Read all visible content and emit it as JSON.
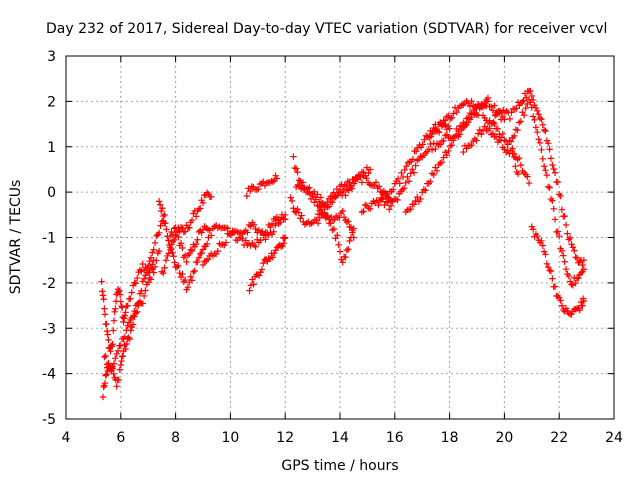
{
  "chart_data": {
    "type": "scatter",
    "title": "Day 232 of 2017, Sidereal Day-to-day VTEC variation (SDTVAR) for receiver vcvl",
    "xlabel": "GPS time / hours",
    "ylabel": "SDTVAR / TECUs",
    "xlim": [
      4,
      24
    ],
    "ylim": [
      -5,
      3
    ],
    "xticks": [
      4,
      6,
      8,
      10,
      12,
      14,
      16,
      18,
      20,
      22,
      24
    ],
    "yticks": [
      -5,
      -4,
      -3,
      -2,
      -1,
      0,
      1,
      2,
      3
    ],
    "grid": true,
    "marker": "+",
    "color": "#ff0000",
    "series": [
      {
        "name": "satellite tracks",
        "tracks": [
          [
            [
              5.3,
              -2.0
            ],
            [
              5.4,
              -2.6
            ],
            [
              5.5,
              -3.1
            ],
            [
              5.6,
              -3.5
            ],
            [
              5.7,
              -3.3
            ],
            [
              5.8,
              -2.5
            ],
            [
              5.9,
              -2.1
            ],
            [
              6.0,
              -2.4
            ],
            [
              6.1,
              -2.8
            ],
            [
              6.2,
              -2.6
            ],
            [
              6.4,
              -2.2
            ],
            [
              6.6,
              -1.9
            ],
            [
              6.8,
              -1.6
            ],
            [
              7.0,
              -1.8
            ],
            [
              7.2,
              -1.5
            ]
          ],
          [
            [
              5.35,
              -4.5
            ],
            [
              5.45,
              -4.0
            ],
            [
              5.55,
              -3.8
            ],
            [
              5.7,
              -3.9
            ],
            [
              5.85,
              -4.3
            ],
            [
              6.0,
              -3.8
            ],
            [
              6.1,
              -3.5
            ],
            [
              6.25,
              -3.3
            ],
            [
              6.4,
              -3.0
            ],
            [
              6.6,
              -2.6
            ],
            [
              6.8,
              -2.4
            ],
            [
              7.0,
              -2.0
            ],
            [
              7.2,
              -1.7
            ],
            [
              7.4,
              -1.3
            ]
          ],
          [
            [
              5.4,
              -3.6
            ],
            [
              5.6,
              -3.9
            ],
            [
              5.8,
              -3.7
            ],
            [
              6.0,
              -3.4
            ],
            [
              6.2,
              -3.0
            ],
            [
              6.4,
              -2.8
            ],
            [
              6.6,
              -2.5
            ],
            [
              6.8,
              -2.0
            ],
            [
              7.0,
              -1.6
            ],
            [
              7.2,
              -1.2
            ],
            [
              7.4,
              -0.9
            ],
            [
              7.6,
              -0.5
            ]
          ],
          [
            [
              7.4,
              -0.2
            ],
            [
              7.55,
              -0.5
            ],
            [
              7.7,
              -0.9
            ],
            [
              7.85,
              -1.3
            ],
            [
              8.0,
              -1.6
            ],
            [
              8.2,
              -1.8
            ],
            [
              8.4,
              -2.1
            ],
            [
              8.6,
              -1.9
            ],
            [
              8.8,
              -1.5
            ],
            [
              9.0,
              -1.3
            ],
            [
              9.2,
              -1.0
            ]
          ],
          [
            [
              7.5,
              -1.8
            ],
            [
              7.7,
              -1.4
            ],
            [
              7.9,
              -1.1
            ],
            [
              8.1,
              -0.8
            ],
            [
              8.3,
              -0.9
            ],
            [
              8.5,
              -0.7
            ],
            [
              8.7,
              -0.5
            ],
            [
              8.9,
              -0.3
            ],
            [
              9.1,
              -0.1
            ],
            [
              9.3,
              -0.1
            ]
          ],
          [
            [
              7.8,
              -1.0
            ],
            [
              8.0,
              -0.8
            ],
            [
              8.2,
              -1.2
            ],
            [
              8.4,
              -1.5
            ],
            [
              8.6,
              -1.3
            ],
            [
              8.8,
              -1.0
            ],
            [
              9.0,
              -0.8
            ],
            [
              9.3,
              -0.9
            ],
            [
              9.6,
              -0.7
            ],
            [
              9.9,
              -0.8
            ],
            [
              10.2,
              -1.0
            ],
            [
              10.5,
              -0.9
            ],
            [
              10.8,
              -0.7
            ],
            [
              11.1,
              -0.9
            ],
            [
              11.4,
              -1.0
            ],
            [
              11.7,
              -0.7
            ],
            [
              12.0,
              -0.6
            ]
          ],
          [
            [
              9.0,
              -1.6
            ],
            [
              9.3,
              -1.4
            ],
            [
              9.6,
              -1.2
            ],
            [
              9.9,
              -1.0
            ],
            [
              10.2,
              -0.9
            ],
            [
              10.5,
              -1.1
            ],
            [
              10.8,
              -1.2
            ],
            [
              11.1,
              -1.0
            ],
            [
              11.4,
              -0.8
            ],
            [
              11.7,
              -0.6
            ],
            [
              12.0,
              -0.5
            ]
          ],
          [
            [
              10.6,
              0.0
            ],
            [
              10.9,
              0.1
            ],
            [
              11.2,
              0.2
            ],
            [
              11.5,
              0.3
            ],
            [
              11.7,
              0.3
            ]
          ],
          [
            [
              10.7,
              -2.1
            ],
            [
              10.9,
              -1.9
            ],
            [
              11.1,
              -1.7
            ],
            [
              11.3,
              -1.5
            ],
            [
              11.5,
              -1.4
            ],
            [
              11.7,
              -1.2
            ],
            [
              11.9,
              -1.1
            ],
            [
              12.0,
              -1.0
            ]
          ],
          [
            [
              12.2,
              -0.2
            ],
            [
              12.4,
              -0.4
            ],
            [
              12.6,
              -0.6
            ],
            [
              12.9,
              -0.7
            ],
            [
              13.2,
              -0.6
            ],
            [
              13.5,
              -0.5
            ],
            [
              13.8,
              -0.6
            ],
            [
              14.1,
              -0.5
            ],
            [
              14.3,
              -0.7
            ],
            [
              14.5,
              -1.0
            ]
          ],
          [
            [
              12.3,
              0.7
            ],
            [
              12.5,
              0.3
            ],
            [
              12.7,
              0.1
            ],
            [
              13.0,
              0.0
            ],
            [
              13.3,
              -0.2
            ],
            [
              13.6,
              -0.3
            ],
            [
              13.9,
              -0.1
            ],
            [
              14.2,
              0.0
            ],
            [
              14.5,
              0.2
            ],
            [
              14.8,
              0.4
            ],
            [
              15.1,
              0.5
            ]
          ],
          [
            [
              12.4,
              0.2
            ],
            [
              12.7,
              0.1
            ],
            [
              13.0,
              -0.1
            ],
            [
              13.3,
              -0.3
            ],
            [
              13.6,
              -0.7
            ],
            [
              13.9,
              -1.0
            ],
            [
              14.1,
              -1.6
            ],
            [
              14.3,
              -1.2
            ],
            [
              14.5,
              -0.8
            ]
          ],
          [
            [
              13.2,
              -0.4
            ],
            [
              13.6,
              -0.2
            ],
            [
              14.0,
              0.1
            ],
            [
              14.4,
              0.2
            ],
            [
              14.8,
              0.3
            ],
            [
              15.2,
              0.2
            ],
            [
              15.6,
              0.0
            ],
            [
              15.9,
              -0.2
            ]
          ],
          [
            [
              14.8,
              -0.4
            ],
            [
              15.1,
              -0.3
            ],
            [
              15.4,
              -0.2
            ],
            [
              15.7,
              -0.1
            ],
            [
              16.0,
              0.1
            ],
            [
              16.3,
              0.4
            ],
            [
              16.6,
              0.7
            ],
            [
              16.9,
              1.0
            ],
            [
              17.2,
              1.2
            ],
            [
              17.5,
              1.3
            ],
            [
              17.8,
              1.5
            ],
            [
              18.0,
              1.4
            ]
          ],
          [
            [
              15.5,
              -0.2
            ],
            [
              15.8,
              -0.3
            ],
            [
              16.1,
              -0.1
            ],
            [
              16.4,
              0.2
            ],
            [
              16.7,
              0.5
            ],
            [
              17.0,
              0.8
            ],
            [
              17.3,
              1.0
            ],
            [
              17.6,
              1.0
            ],
            [
              17.9,
              1.2
            ],
            [
              18.2,
              1.3
            ],
            [
              18.5,
              1.5
            ],
            [
              18.8,
              1.7
            ],
            [
              19.1,
              1.8
            ],
            [
              19.4,
              2.0
            ]
          ],
          [
            [
              16.4,
              -0.5
            ],
            [
              16.7,
              -0.3
            ],
            [
              17.0,
              0.0
            ],
            [
              17.3,
              0.3
            ],
            [
              17.6,
              0.6
            ],
            [
              17.9,
              0.9
            ],
            [
              18.2,
              1.2
            ],
            [
              18.5,
              1.4
            ],
            [
              18.8,
              1.7
            ],
            [
              19.1,
              1.9
            ],
            [
              19.4,
              2.0
            ],
            [
              19.7,
              1.8
            ],
            [
              20.0,
              1.6
            ]
          ],
          [
            [
              17.3,
              1.3
            ],
            [
              17.6,
              1.5
            ],
            [
              17.9,
              1.6
            ],
            [
              18.2,
              1.8
            ],
            [
              18.5,
              1.9
            ],
            [
              18.8,
              2.0
            ],
            [
              19.1,
              1.9
            ],
            [
              19.4,
              1.6
            ],
            [
              19.7,
              1.4
            ],
            [
              20.0,
              1.2
            ],
            [
              20.3,
              1.0
            ],
            [
              20.6,
              0.6
            ],
            [
              20.9,
              0.2
            ]
          ],
          [
            [
              18.5,
              0.9
            ],
            [
              18.8,
              1.1
            ],
            [
              19.1,
              1.3
            ],
            [
              19.4,
              1.4
            ],
            [
              19.7,
              1.2
            ],
            [
              20.0,
              1.0
            ],
            [
              20.3,
              0.8
            ],
            [
              20.5,
              0.4
            ]
          ],
          [
            [
              19.6,
              1.6
            ],
            [
              19.9,
              1.8
            ],
            [
              20.2,
              1.7
            ],
            [
              20.5,
              1.9
            ],
            [
              20.7,
              2.1
            ],
            [
              20.9,
              2.2
            ],
            [
              21.1,
              2.0
            ],
            [
              21.3,
              1.7
            ],
            [
              21.5,
              1.3
            ],
            [
              21.7,
              0.8
            ],
            [
              21.9,
              0.3
            ],
            [
              22.1,
              -0.3
            ],
            [
              22.3,
              -0.9
            ],
            [
              22.5,
              -1.3
            ],
            [
              22.7,
              -1.6
            ],
            [
              22.9,
              -1.5
            ]
          ],
          [
            [
              20.3,
              1.2
            ],
            [
              20.6,
              1.6
            ],
            [
              20.9,
              2.0
            ],
            [
              21.1,
              1.6
            ],
            [
              21.3,
              1.0
            ],
            [
              21.5,
              0.5
            ],
            [
              21.7,
              -0.1
            ],
            [
              21.9,
              -0.8
            ],
            [
              22.1,
              -1.3
            ],
            [
              22.3,
              -1.8
            ],
            [
              22.5,
              -2.0
            ],
            [
              22.7,
              -1.9
            ],
            [
              22.9,
              -1.7
            ]
          ],
          [
            [
              21.0,
              -0.8
            ],
            [
              21.2,
              -1.0
            ],
            [
              21.4,
              -1.2
            ],
            [
              21.6,
              -1.6
            ],
            [
              21.8,
              -2.0
            ],
            [
              22.0,
              -2.4
            ],
            [
              22.2,
              -2.6
            ],
            [
              22.4,
              -2.7
            ],
            [
              22.6,
              -2.6
            ],
            [
              22.8,
              -2.5
            ],
            [
              22.9,
              -2.4
            ]
          ]
        ]
      }
    ]
  }
}
